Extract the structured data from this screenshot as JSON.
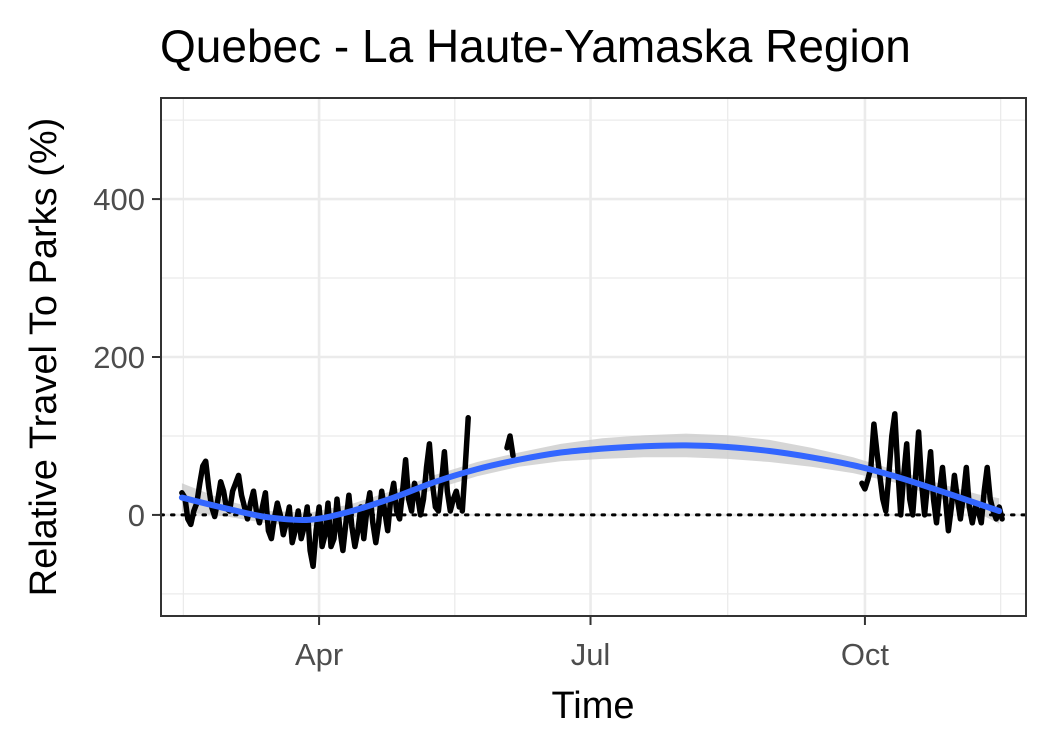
{
  "chart_data": {
    "type": "line",
    "title": "Quebec - La Haute-Yamaska Region",
    "xlabel": "Time",
    "ylabel": "Relative Travel To Parks (%)",
    "x_ticks": [
      {
        "label": "Apr",
        "date": "2020-04-01"
      },
      {
        "label": "Jul",
        "date": "2020-07-01"
      },
      {
        "label": "Oct",
        "date": "2020-10-01"
      }
    ],
    "y_ticks": [
      0,
      200,
      400
    ],
    "xlim": [
      "2020-02-08",
      "2020-11-24"
    ],
    "ylim": [
      -128,
      528
    ],
    "grid": true,
    "reference_line": {
      "y": 0,
      "style": "dotted"
    },
    "colors": {
      "series": "#000000",
      "smooth": "#3366ff",
      "band": "#c8c8c8",
      "grid": "#ebebeb",
      "panel_border": "#333333"
    },
    "series": [
      {
        "role": "observed",
        "segments": [
          [
            [
              "2020-02-15",
              28
            ],
            [
              "2020-02-16",
              22
            ],
            [
              "2020-02-17",
              -5
            ],
            [
              "2020-02-18",
              -12
            ],
            [
              "2020-02-19",
              5
            ],
            [
              "2020-02-20",
              15
            ],
            [
              "2020-02-21",
              40
            ],
            [
              "2020-02-22",
              62
            ],
            [
              "2020-02-23",
              68
            ],
            [
              "2020-02-24",
              35
            ],
            [
              "2020-02-25",
              10
            ],
            [
              "2020-02-26",
              -2
            ],
            [
              "2020-02-27",
              18
            ],
            [
              "2020-02-28",
              42
            ],
            [
              "2020-02-29",
              30
            ],
            [
              "2020-03-01",
              8
            ],
            [
              "2020-03-02",
              5
            ],
            [
              "2020-03-03",
              30
            ],
            [
              "2020-03-04",
              40
            ],
            [
              "2020-03-05",
              50
            ],
            [
              "2020-03-06",
              25
            ],
            [
              "2020-03-07",
              10
            ],
            [
              "2020-03-08",
              -5
            ],
            [
              "2020-03-09",
              15
            ],
            [
              "2020-03-10",
              30
            ],
            [
              "2020-03-11",
              5
            ],
            [
              "2020-03-12",
              -10
            ],
            [
              "2020-03-13",
              10
            ],
            [
              "2020-03-14",
              28
            ],
            [
              "2020-03-15",
              -20
            ],
            [
              "2020-03-16",
              -30
            ],
            [
              "2020-03-17",
              -5
            ],
            [
              "2020-03-18",
              15
            ],
            [
              "2020-03-19",
              0
            ],
            [
              "2020-03-20",
              -25
            ],
            [
              "2020-03-21",
              -10
            ],
            [
              "2020-03-22",
              10
            ],
            [
              "2020-03-23",
              -35
            ],
            [
              "2020-03-24",
              -20
            ],
            [
              "2020-03-25",
              5
            ],
            [
              "2020-03-26",
              -30
            ],
            [
              "2020-03-27",
              -15
            ],
            [
              "2020-03-28",
              10
            ],
            [
              "2020-03-29",
              -45
            ],
            [
              "2020-03-30",
              -65
            ],
            [
              "2020-03-31",
              -20
            ],
            [
              "2020-04-01",
              10
            ],
            [
              "2020-04-02",
              -40
            ],
            [
              "2020-04-03",
              -25
            ],
            [
              "2020-04-04",
              15
            ],
            [
              "2020-04-05",
              -40
            ],
            [
              "2020-04-06",
              -30
            ],
            [
              "2020-04-07",
              20
            ],
            [
              "2020-04-08",
              -20
            ],
            [
              "2020-04-09",
              -45
            ],
            [
              "2020-04-10",
              -10
            ],
            [
              "2020-04-11",
              25
            ],
            [
              "2020-04-12",
              -15
            ],
            [
              "2020-04-13",
              -40
            ],
            [
              "2020-04-14",
              -20
            ],
            [
              "2020-04-15",
              10
            ],
            [
              "2020-04-16",
              -30
            ],
            [
              "2020-04-17",
              5
            ],
            [
              "2020-04-18",
              28
            ],
            [
              "2020-04-19",
              -10
            ],
            [
              "2020-04-20",
              -35
            ],
            [
              "2020-04-21",
              -10
            ],
            [
              "2020-04-22",
              30
            ],
            [
              "2020-04-23",
              5
            ],
            [
              "2020-04-24",
              -20
            ],
            [
              "2020-04-25",
              20
            ],
            [
              "2020-04-26",
              40
            ],
            [
              "2020-04-27",
              5
            ],
            [
              "2020-04-28",
              -5
            ],
            [
              "2020-04-29",
              30
            ],
            [
              "2020-04-30",
              70
            ],
            [
              "2020-05-01",
              20
            ],
            [
              "2020-05-02",
              5
            ],
            [
              "2020-05-03",
              40
            ],
            [
              "2020-05-04",
              25
            ],
            [
              "2020-05-05",
              0
            ],
            [
              "2020-05-06",
              20
            ],
            [
              "2020-05-07",
              60
            ],
            [
              "2020-05-08",
              90
            ],
            [
              "2020-05-09",
              40
            ],
            [
              "2020-05-10",
              10
            ],
            [
              "2020-05-11",
              5
            ],
            [
              "2020-05-12",
              40
            ],
            [
              "2020-05-13",
              80
            ],
            [
              "2020-05-14",
              30
            ],
            [
              "2020-05-15",
              5
            ],
            [
              "2020-05-16",
              20
            ],
            [
              "2020-05-17",
              30
            ],
            [
              "2020-05-18",
              10
            ]
          ],
          [
            [
              "2020-05-19",
              5
            ],
            [
              "2020-05-20",
              60
            ],
            [
              "2020-05-21",
              123
            ]
          ],
          [
            [
              "2020-06-03",
              85
            ],
            [
              "2020-06-04",
              100
            ],
            [
              "2020-06-05",
              75
            ]
          ],
          [
            [
              "2020-09-30",
              40
            ],
            [
              "2020-10-01",
              33
            ],
            [
              "2020-10-02",
              45
            ],
            [
              "2020-10-03",
              60
            ]
          ],
          [
            [
              "2020-10-03",
              60
            ],
            [
              "2020-10-04",
              115
            ],
            [
              "2020-10-05",
              80
            ],
            [
              "2020-10-06",
              50
            ],
            [
              "2020-10-07",
              20
            ],
            [
              "2020-10-08",
              5
            ],
            [
              "2020-10-09",
              50
            ],
            [
              "2020-10-10",
              100
            ],
            [
              "2020-10-11",
              128
            ],
            [
              "2020-10-12",
              60
            ],
            [
              "2020-10-13",
              0
            ],
            [
              "2020-10-14",
              50
            ],
            [
              "2020-10-15",
              90
            ],
            [
              "2020-10-16",
              20
            ],
            [
              "2020-10-17",
              0
            ],
            [
              "2020-10-18",
              50
            ],
            [
              "2020-10-19",
              105
            ],
            [
              "2020-10-20",
              40
            ],
            [
              "2020-10-21",
              0
            ],
            [
              "2020-10-22",
              40
            ],
            [
              "2020-10-23",
              80
            ],
            [
              "2020-10-24",
              20
            ],
            [
              "2020-10-25",
              -10
            ],
            [
              "2020-10-26",
              30
            ],
            [
              "2020-10-27",
              60
            ],
            [
              "2020-10-28",
              20
            ],
            [
              "2020-10-29",
              -20
            ],
            [
              "2020-10-30",
              10
            ],
            [
              "2020-10-31",
              50
            ],
            [
              "2020-11-01",
              20
            ],
            [
              "2020-11-02",
              -5
            ],
            [
              "2020-11-03",
              25
            ],
            [
              "2020-11-04",
              60
            ],
            [
              "2020-11-05",
              10
            ],
            [
              "2020-11-06",
              -10
            ],
            [
              "2020-11-07",
              10
            ],
            [
              "2020-11-08",
              5
            ],
            [
              "2020-11-09",
              -10
            ],
            [
              "2020-11-10",
              30
            ],
            [
              "2020-11-11",
              60
            ],
            [
              "2020-11-12",
              20
            ],
            [
              "2020-11-13",
              5
            ],
            [
              "2020-11-14",
              -5
            ],
            [
              "2020-11-15",
              10
            ],
            [
              "2020-11-16",
              -5
            ]
          ]
        ]
      },
      {
        "role": "smoothed",
        "points": [
          [
            "2020-02-15",
            22
          ],
          [
            "2020-03-01",
            8
          ],
          [
            "2020-03-15",
            -3
          ],
          [
            "2020-03-29",
            -6
          ],
          [
            "2020-04-12",
            5
          ],
          [
            "2020-04-26",
            22
          ],
          [
            "2020-05-10",
            42
          ],
          [
            "2020-05-24",
            58
          ],
          [
            "2020-06-07",
            70
          ],
          [
            "2020-06-21",
            79
          ],
          [
            "2020-07-05",
            84
          ],
          [
            "2020-07-19",
            87
          ],
          [
            "2020-08-02",
            88
          ],
          [
            "2020-08-16",
            86
          ],
          [
            "2020-08-30",
            81
          ],
          [
            "2020-09-13",
            73
          ],
          [
            "2020-09-27",
            63
          ],
          [
            "2020-10-11",
            49
          ],
          [
            "2020-10-25",
            32
          ],
          [
            "2020-11-08",
            14
          ],
          [
            "2020-11-15",
            5
          ]
        ],
        "band_halfwidth": [
          18,
          10,
          8,
          9,
          9,
          9,
          9,
          9,
          9,
          11,
          13,
          14,
          15,
          15,
          14,
          12,
          10,
          8,
          9,
          12,
          16
        ]
      }
    ]
  }
}
